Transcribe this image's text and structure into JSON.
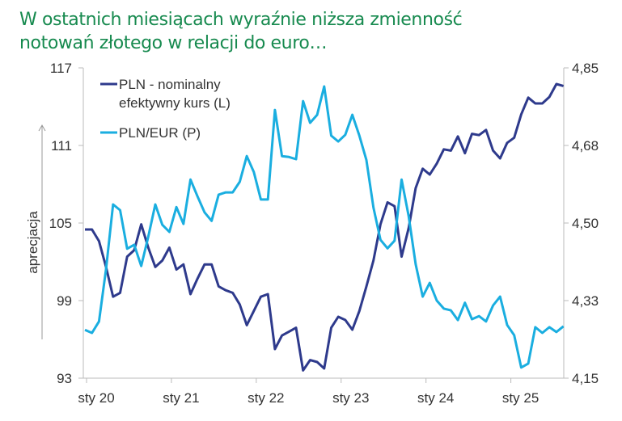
{
  "title_line1": "W ostatnich miesiącach wyraźnie niższa zmienność",
  "title_line2": "notowań złotego w relacji do euro…",
  "colors": {
    "title": "#178a4f",
    "neer": "#2e3a8c",
    "plneur": "#1aaee0",
    "axis": "#bbbbbb"
  },
  "chart_data": {
    "type": "line",
    "title": "W ostatnich miesiącach wyraźnie niższa zmienność notowań złotego w relacji do euro…",
    "ylabel": "aprecjacja",
    "ylabel_arrow": "up",
    "x_tick_labels": [
      "sty 20",
      "sty 21",
      "sty 22",
      "sty 23",
      "sty 24",
      "sty 25"
    ],
    "x_range": [
      "2020-01",
      "2025-09"
    ],
    "frequency": "monthly",
    "y_left": {
      "ylim": [
        93,
        117
      ],
      "ticks": [
        "93",
        "99",
        "105",
        "111",
        "117"
      ]
    },
    "y_right": {
      "ylim": [
        4.15,
        4.85
      ],
      "ticks": [
        "4,15",
        "4,33",
        "4,50",
        "4,68",
        "4,85"
      ]
    },
    "grid": false,
    "legend_position": "top-left",
    "series": [
      {
        "name": "PLN - nominalny efektywny kurs (L)",
        "name_line1": "PLN - nominalny",
        "name_line2": "efektywny kurs (L)",
        "axis": "left",
        "values": [
          104.5,
          104.5,
          103.6,
          101.6,
          99.3,
          99.6,
          102.4,
          102.9,
          104.9,
          103.1,
          101.6,
          102.1,
          103.1,
          101.4,
          101.8,
          99.5,
          100.7,
          101.8,
          101.8,
          100.1,
          99.8,
          99.6,
          98.7,
          97.1,
          98.2,
          99.3,
          99.5,
          95.25,
          96.3,
          96.6,
          96.9,
          93.6,
          94.4,
          94.25,
          93.75,
          96.9,
          97.75,
          97.5,
          96.75,
          98.2,
          100.1,
          102.1,
          104.9,
          106.6,
          106.3,
          102.4,
          104.6,
          107.7,
          109.2,
          108.75,
          109.6,
          110.7,
          110.6,
          111.7,
          110.4,
          111.9,
          111.8,
          112.2,
          110.6,
          110.0,
          111.2,
          111.6,
          113.4,
          114.7,
          114.25,
          114.25,
          114.75,
          115.75,
          115.6
        ]
      },
      {
        "name": "PLN/EUR (P)",
        "axis": "right",
        "values": [
          4.259,
          4.252,
          4.278,
          4.396,
          4.542,
          4.529,
          4.442,
          4.451,
          4.403,
          4.469,
          4.542,
          4.496,
          4.48,
          4.536,
          4.498,
          4.598,
          4.56,
          4.524,
          4.505,
          4.564,
          4.569,
          4.569,
          4.593,
          4.651,
          4.615,
          4.553,
          4.553,
          4.755,
          4.651,
          4.649,
          4.644,
          4.775,
          4.726,
          4.744,
          4.808,
          4.697,
          4.684,
          4.699,
          4.744,
          4.697,
          4.642,
          4.535,
          4.462,
          4.443,
          4.46,
          4.598,
          4.516,
          4.407,
          4.334,
          4.365,
          4.325,
          4.307,
          4.303,
          4.281,
          4.32,
          4.283,
          4.29,
          4.278,
          4.314,
          4.334,
          4.27,
          4.247,
          4.174,
          4.183,
          4.265,
          4.252,
          4.265,
          4.254,
          4.267
        ]
      }
    ]
  }
}
